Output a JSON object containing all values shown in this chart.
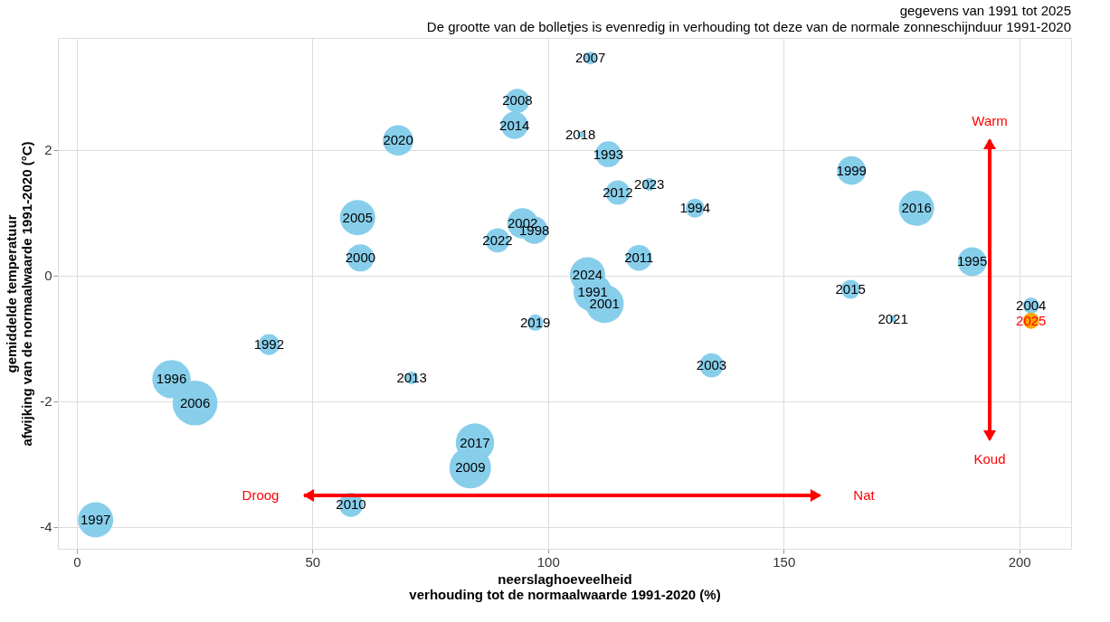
{
  "chart_data": {
    "type": "bubble",
    "title": "gegevens van 1991 tot 2025",
    "subtitle": "De grootte van de bolletjes is evenredig in verhouding tot deze van de normale zonneschijnduur 1991-2020",
    "xlabel": "neerslaghoeveelheid\nverhouding tot de normaalwaarde 1991-2020 (%)",
    "ylabel": "gemiddelde temperatuur\nafwijking van de normaalwaarde 1991-2020 (°C)",
    "xlim": [
      -4,
      211
    ],
    "ylim": [
      -4.35,
      3.78
    ],
    "xticks": [
      0,
      50,
      100,
      150,
      200
    ],
    "yticks": [
      -4,
      -2,
      0,
      2
    ],
    "grid": true,
    "marker": "circle",
    "series": [
      {
        "color": "#87ceeb",
        "x": [
          109.5,
          40.8,
          112.8,
          131.2,
          190.0,
          20.1,
          4.0,
          97.1,
          164.4,
          60.2,
          112.0,
          94.6,
          134.7,
          202.5,
          59.6,
          25.1,
          109.0,
          93.5,
          83.5,
          58.2,
          119.3,
          114.8,
          71.1,
          92.9,
          164.2,
          178.2,
          84.5,
          106.9,
          97.3,
          68.2,
          173.2,
          89.3,
          121.5,
          108.4
        ],
        "values": [
          -0.27,
          -1.1,
          1.93,
          1.07,
          0.22,
          -1.65,
          -3.89,
          0.72,
          1.67,
          0.28,
          -0.45,
          0.83,
          -1.43,
          -0.48,
          0.92,
          -2.03,
          3.46,
          2.78,
          -3.06,
          -3.65,
          0.28,
          1.32,
          -1.63,
          2.39,
          -0.22,
          1.07,
          -2.66,
          2.24,
          -0.75,
          2.15,
          -0.69,
          0.56,
          1.45,
          0.01
        ],
        "sizes": [
          0.73,
          0.22,
          0.33,
          0.18,
          0.41,
          0.73,
          0.62,
          0.37,
          0.41,
          0.37,
          0.73,
          0.46,
          0.29,
          0.13,
          0.62,
          1,
          0.08,
          0.29,
          0.86,
          0.29,
          0.33,
          0.29,
          0.08,
          0.37,
          0.18,
          0.62,
          0.73,
          0.02,
          0.13,
          0.46,
          0.02,
          0.29,
          0.08,
          0.62
        ]
      },
      {
        "color": "#ffa500",
        "x": [
          202.5
        ],
        "values": [
          -0.72
        ],
        "sizes": [
          0.13
        ]
      }
    ],
    "annotations": [
      {
        "text": "1991",
        "x": 109.5,
        "y": -0.27
      },
      {
        "text": "1992",
        "x": 40.8,
        "y": -1.1
      },
      {
        "text": "1993",
        "x": 112.8,
        "y": 1.93
      },
      {
        "text": "1994",
        "x": 131.2,
        "y": 1.07
      },
      {
        "text": "1995",
        "x": 190.0,
        "y": 0.22
      },
      {
        "text": "1996",
        "x": 20.1,
        "y": -1.65
      },
      {
        "text": "1997",
        "x": 4.0,
        "y": -3.89
      },
      {
        "text": "1998",
        "x": 97.1,
        "y": 0.72
      },
      {
        "text": "1999",
        "x": 164.4,
        "y": 1.67
      },
      {
        "text": "2000",
        "x": 60.2,
        "y": 0.28
      },
      {
        "text": "2001",
        "x": 112.0,
        "y": -0.45
      },
      {
        "text": "2002",
        "x": 94.6,
        "y": 0.83
      },
      {
        "text": "2003",
        "x": 134.7,
        "y": -1.43
      },
      {
        "text": "2004",
        "x": 202.5,
        "y": -0.48
      },
      {
        "text": "2005",
        "x": 59.6,
        "y": 0.92
      },
      {
        "text": "2006",
        "x": 25.1,
        "y": -2.03
      },
      {
        "text": "2007",
        "x": 109.0,
        "y": 3.46
      },
      {
        "text": "2008",
        "x": 93.5,
        "y": 2.78
      },
      {
        "text": "2009",
        "x": 83.5,
        "y": -3.06
      },
      {
        "text": "2010",
        "x": 58.2,
        "y": -3.65
      },
      {
        "text": "2011",
        "x": 119.3,
        "y": 0.28
      },
      {
        "text": "2012",
        "x": 114.8,
        "y": 1.32
      },
      {
        "text": "2013",
        "x": 71.1,
        "y": -1.63
      },
      {
        "text": "2014",
        "x": 92.9,
        "y": 2.39
      },
      {
        "text": "2015",
        "x": 164.2,
        "y": -0.22
      },
      {
        "text": "2016",
        "x": 178.2,
        "y": 1.07
      },
      {
        "text": "2017",
        "x": 84.5,
        "y": -2.66
      },
      {
        "text": "2018",
        "x": 106.9,
        "y": 2.24
      },
      {
        "text": "2019",
        "x": 97.3,
        "y": -0.75
      },
      {
        "text": "2020",
        "x": 68.2,
        "y": 2.15
      },
      {
        "text": "2021",
        "x": 173.2,
        "y": -0.69
      },
      {
        "text": "2022",
        "x": 89.3,
        "y": 0.56
      },
      {
        "text": "2023",
        "x": 121.5,
        "y": 1.45
      },
      {
        "text": "2024",
        "x": 108.4,
        "y": 0.01
      },
      {
        "text": "2025",
        "x": 202.5,
        "y": -0.72
      },
      "Droog",
      "Nat",
      "Warm",
      "Koud"
    ]
  }
}
